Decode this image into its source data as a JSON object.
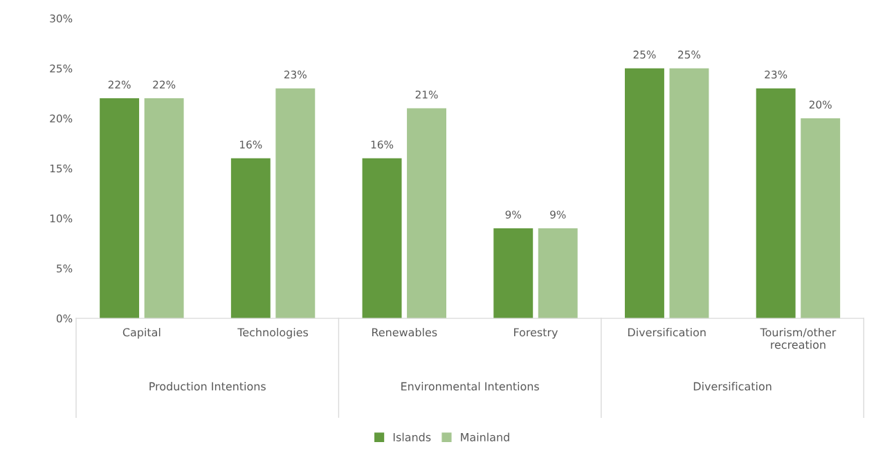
{
  "chart_data": {
    "type": "bar",
    "categories": [
      "Capital",
      "Technologies",
      "Renewables",
      "Forestry",
      "Diversification",
      "Tourism/other\nrecreation"
    ],
    "series": [
      {
        "name": "Islands",
        "color": "#639a3e",
        "values": [
          22,
          16,
          16,
          9,
          25,
          23
        ],
        "value_labels": [
          "22%",
          "16%",
          "16%",
          "9%",
          "25%",
          "23%"
        ]
      },
      {
        "name": "Mainland",
        "color": "#a5c690",
        "values": [
          22,
          23,
          21,
          9,
          25,
          20
        ],
        "value_labels": [
          "22%",
          "23%",
          "21%",
          "9%",
          "25%",
          "20%"
        ]
      }
    ],
    "annotations": [
      "Production Intentions",
      "Environmental Intentions",
      "Diversification"
    ],
    "ylim": [
      0,
      30
    ],
    "yticks": [
      {
        "value": 0,
        "label": "0%"
      },
      {
        "value": 5,
        "label": "5%"
      },
      {
        "value": 10,
        "label": "10%"
      },
      {
        "value": 15,
        "label": "15%"
      },
      {
        "value": 20,
        "label": "20%"
      },
      {
        "value": 25,
        "label": "25%"
      },
      {
        "value": 30,
        "label": "30%"
      }
    ],
    "grid": false,
    "legend": "bottom"
  }
}
